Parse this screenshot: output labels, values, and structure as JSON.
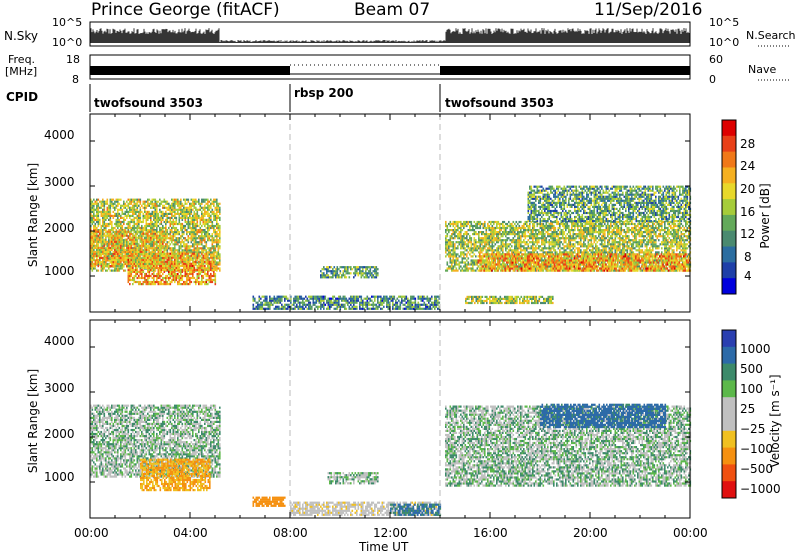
{
  "header": {
    "station": "Prince George (fitACF)",
    "beam": "Beam 07",
    "date": "11/Sep/2016"
  },
  "top_panels": {
    "nsky_label": "N.Sky",
    "nsky_ticks": [
      "10^5",
      "10^0"
    ],
    "nsearch_ticks": [
      "10^5",
      "10^0"
    ],
    "nsearch_label": "N.Search",
    "freq_label_line1": "Freq.",
    "freq_label_line2": "[MHz]",
    "freq_ticks": [
      "18",
      "8"
    ],
    "nave_ticks": [
      "60",
      "0"
    ],
    "nave_label": "Nave",
    "cpid_label": "CPID",
    "cpid_segments": [
      {
        "name": "twofsound 3503",
        "start": 0,
        "end": 8
      },
      {
        "name": "rbsp 200",
        "start": 8,
        "end": 14
      },
      {
        "name": "twofsound 3503",
        "start": 14,
        "end": 24
      }
    ]
  },
  "x_axis": {
    "label": "Time UT",
    "ticks": [
      "00:00",
      "04:00",
      "08:00",
      "12:00",
      "16:00",
      "20:00",
      "00:00"
    ]
  },
  "power_panel": {
    "ylabel": "Slant Range [km]",
    "yticks": [
      "4000",
      "3000",
      "2000",
      "1000"
    ],
    "colorbar_label": "Power [dB]",
    "colorbar_ticks": [
      "28",
      "24",
      "20",
      "16",
      "12",
      "8",
      "4"
    ],
    "colors": [
      "#0000dd",
      "#1e3fa8",
      "#2b6da0",
      "#4a8a70",
      "#63a95a",
      "#a6cc3a",
      "#e8d82a",
      "#f5b020",
      "#f07818",
      "#e84018",
      "#dd0000"
    ]
  },
  "velocity_panel": {
    "ylabel": "Slant Range [km]",
    "yticks": [
      "4000",
      "3000",
      "2000",
      "1000"
    ],
    "colorbar_label": "Velocity [m s⁻¹]",
    "colorbar_ticks": [
      "1000",
      "500",
      "100",
      "25",
      "−25",
      "−100",
      "−500",
      "−1000"
    ],
    "colors": [
      "#2a3fb0",
      "#2c6aa8",
      "#3c8a6a",
      "#5cb84a",
      "#c0c0c0",
      "#c0c0c0",
      "#f0c020",
      "#f59010",
      "#f05010",
      "#e01010"
    ]
  },
  "chart_data": {
    "type": "heatmap",
    "x_range_hours": [
      0,
      24
    ],
    "y_range_km": [
      200,
      4600
    ],
    "grid": false,
    "power_regions": [
      {
        "t0": 0.0,
        "t1": 5.2,
        "r0": 1100,
        "r1": 2700,
        "p": 17
      },
      {
        "t0": 1.5,
        "t1": 5.0,
        "r0": 800,
        "r1": 1500,
        "p": 22
      },
      {
        "t0": 0.0,
        "t1": 3.0,
        "r0": 1200,
        "r1": 2000,
        "p": 20
      },
      {
        "t0": 9.2,
        "t1": 11.5,
        "r0": 950,
        "r1": 1200,
        "p": 12
      },
      {
        "t0": 6.5,
        "t1": 14.0,
        "r0": 250,
        "r1": 550,
        "p": 10
      },
      {
        "t0": 14.2,
        "t1": 24.0,
        "r0": 1100,
        "r1": 2200,
        "p": 16
      },
      {
        "t0": 15.5,
        "t1": 24.0,
        "r0": 1100,
        "r1": 1500,
        "p": 22
      },
      {
        "t0": 17.5,
        "t1": 24.0,
        "r0": 2200,
        "r1": 3000,
        "p": 12
      },
      {
        "t0": 15.0,
        "t1": 18.5,
        "r0": 380,
        "r1": 560,
        "p": 16
      }
    ],
    "velocity_regions": [
      {
        "t0": 0.0,
        "t1": 5.2,
        "r0": 1100,
        "r1": 2700,
        "v": 0
      },
      {
        "t0": 2.0,
        "t1": 4.8,
        "r0": 800,
        "r1": 1500,
        "v": -300
      },
      {
        "t0": 6.5,
        "t1": 7.8,
        "r0": 450,
        "r1": 650,
        "v": -400
      },
      {
        "t0": 8.0,
        "t1": 14.0,
        "r0": 250,
        "r1": 550,
        "v": -60
      },
      {
        "t0": 12.0,
        "t1": 14.0,
        "r0": 250,
        "r1": 500,
        "v": 120
      },
      {
        "t0": 9.5,
        "t1": 11.5,
        "r0": 950,
        "r1": 1200,
        "v": 0
      },
      {
        "t0": 14.2,
        "t1": 24.0,
        "r0": 900,
        "r1": 2700,
        "v": 0
      },
      {
        "t0": 18.0,
        "t1": 23.0,
        "r0": 2200,
        "r1": 2700,
        "v": 150
      }
    ]
  }
}
